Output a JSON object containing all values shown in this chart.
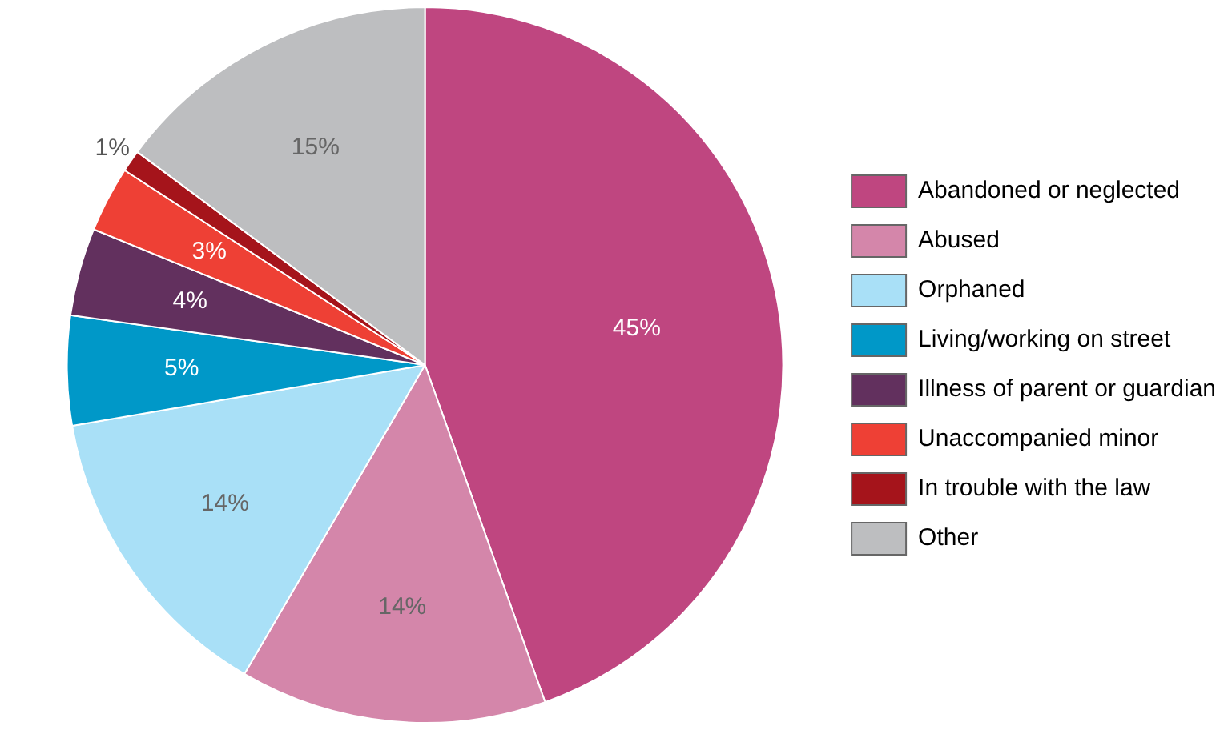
{
  "chart_data": {
    "type": "pie",
    "categories": [
      "Abandoned or neglected",
      "Abused",
      "Orphaned",
      "Living/working on street",
      "Illness of parent or guardian",
      "Unaccompanied minor",
      "In trouble with the law",
      "Other"
    ],
    "values": [
      45,
      14,
      14,
      5,
      4,
      3,
      1,
      15
    ],
    "colors": [
      "#bf4680",
      "#d486aa",
      "#a9e0f7",
      "#0098c8",
      "#62305e",
      "#ee4035",
      "#a5141b",
      "#bdbec0"
    ],
    "value_labels": [
      "45%",
      "14%",
      "14%",
      "5%",
      "4%",
      "3%",
      "1%",
      "15%"
    ],
    "legend": "right"
  }
}
